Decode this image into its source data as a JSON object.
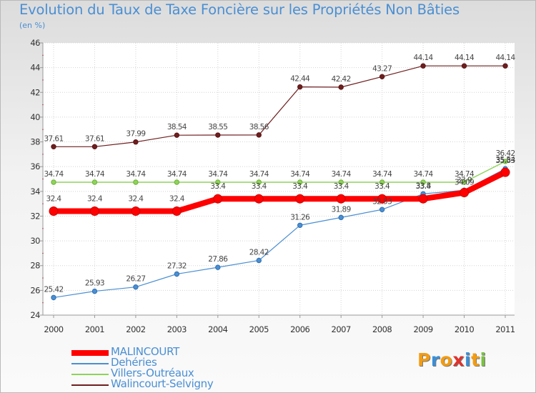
{
  "title": "Evolution du Taux de Taxe Foncière sur les Propriétés Non Bâties",
  "subtitle": "(en %)",
  "chart_data": {
    "type": "line",
    "title": "Evolution du Taux de Taxe Foncière sur les Propriétés Non Bâties",
    "ylabel": "(en %)",
    "xlabel": "",
    "categories": [
      "2000",
      "2001",
      "2002",
      "2003",
      "2004",
      "2005",
      "2006",
      "2007",
      "2008",
      "2009",
      "2010",
      "2011"
    ],
    "ylim": [
      24,
      46
    ],
    "yticks": [
      24,
      26,
      28,
      30,
      32,
      34,
      36,
      38,
      40,
      42,
      44,
      46
    ],
    "grid": true,
    "series": [
      {
        "name": "Walincourt-Selvigny",
        "color": "#6e1e1e",
        "values": [
          37.61,
          37.61,
          37.99,
          38.54,
          38.55,
          38.56,
          42.44,
          42.42,
          43.27,
          44.14,
          44.14,
          44.14
        ],
        "labels": [
          "37.61",
          "37.61",
          "37.99",
          "38.54",
          "38.55",
          "38.56",
          "42.44",
          "42.42",
          "43.27",
          "44.14",
          "44.14",
          "44.14"
        ]
      },
      {
        "name": "Villers-Outréaux",
        "color": "#8fd35a",
        "values": [
          34.74,
          34.74,
          34.74,
          34.74,
          34.74,
          34.74,
          34.74,
          34.74,
          34.74,
          34.74,
          34.74,
          36.42
        ],
        "labels": [
          "34.74",
          "34.74",
          "34.74",
          "34.74",
          "34.74",
          "34.74",
          "34.74",
          "34.74",
          "34.74",
          "34.74",
          "34.74",
          "36.42"
        ]
      },
      {
        "name": "Dehéries",
        "color": "#4a8fd3",
        "values": [
          25.42,
          25.93,
          26.27,
          27.32,
          27.86,
          28.42,
          31.26,
          31.89,
          32.53,
          33.8,
          34.09,
          35.83
        ],
        "labels": [
          "25.42",
          "25.93",
          "26.27",
          "27.32",
          "27.86",
          "28.42",
          "31.26",
          "31.89",
          "32.53",
          "33.8",
          "34.09",
          "35.83"
        ]
      },
      {
        "name": "MALINCOURT",
        "color": "#ff0000",
        "values": [
          32.4,
          32.4,
          32.4,
          32.4,
          33.4,
          33.4,
          33.4,
          33.4,
          33.4,
          33.4,
          33.9,
          35.54
        ],
        "labels": [
          "32.4",
          "32.4",
          "32.4",
          "32.4",
          "33.4",
          "33.4",
          "33.4",
          "33.4",
          "33.4",
          "33.4",
          "33.9",
          "35.54"
        ]
      }
    ],
    "legend": [
      {
        "name": "MALINCOURT",
        "color": "#ff0000"
      },
      {
        "name": "Dehéries",
        "color": "#4a8fd3"
      },
      {
        "name": "Villers-Outréaux",
        "color": "#8fd35a"
      },
      {
        "name": "Walincourt-Selvigny",
        "color": "#6e1e1e"
      }
    ]
  },
  "logo": {
    "text": "Proxiti",
    "letters": [
      "P",
      "r",
      "o",
      "x",
      "i",
      "t",
      "i"
    ],
    "colors": [
      "#f39c12",
      "#3a8fd8",
      "#f39c12",
      "#e0322c",
      "#3a8fd8",
      "#f39c12",
      "#7ac143"
    ]
  }
}
